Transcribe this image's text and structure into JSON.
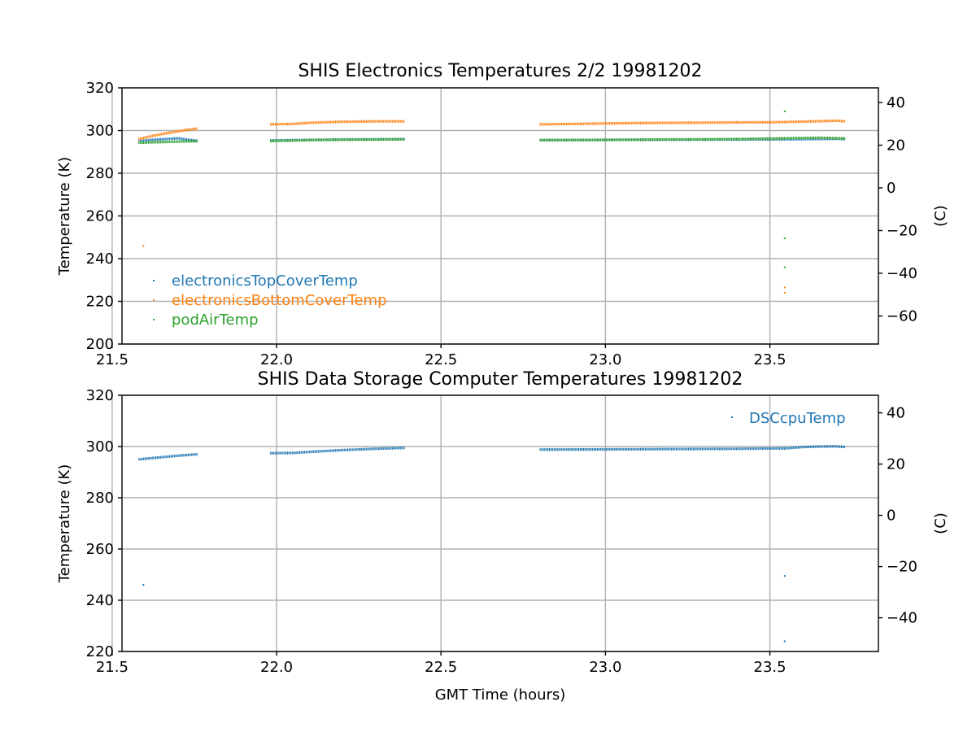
{
  "colors": {
    "blue": "#1f77b4",
    "orange": "#ff7f0e",
    "green": "#2ca02c"
  },
  "chart_data": [
    {
      "type": "scatter",
      "title": "SHIS Electronics Temperatures 2/2 19981202",
      "xlabel": "",
      "ylabel": "Temperature (K)",
      "y2label": "(C)",
      "xlim": [
        21.53,
        23.83
      ],
      "ylim": [
        200,
        320
      ],
      "xticks": [
        "21.5",
        "22.0",
        "22.5",
        "23.0",
        "23.5"
      ],
      "yticks": [
        "200",
        "220",
        "240",
        "260",
        "280",
        "300",
        "320"
      ],
      "y2ticks": [
        "−60",
        "−40",
        "−20",
        "0",
        "20",
        "40"
      ],
      "grid": true,
      "legend_position": "lower-left",
      "series": [
        {
          "name": "electronicsTopCoverTemp",
          "color": "#1f77b4",
          "segments": [
            {
              "x": [
                21.58,
                21.62,
                21.66,
                21.7,
                21.74,
                21.76
              ],
              "y": [
                295.0,
                295.6,
                296.0,
                296.4,
                295.5,
                295.2
              ]
            },
            {
              "x": [
                21.98,
                22.1,
                22.2,
                22.3,
                22.39
              ],
              "y": [
                295.3,
                295.6,
                295.8,
                295.9,
                296.0
              ]
            },
            {
              "x": [
                22.8,
                23.0,
                23.2,
                23.4,
                23.55,
                23.7,
                23.73
              ],
              "y": [
                295.5,
                295.6,
                295.7,
                295.8,
                295.9,
                296.1,
                296.0
              ]
            }
          ],
          "points": []
        },
        {
          "name": "electronicsBottomCoverTemp",
          "color": "#ff7f0e",
          "segments": [
            {
              "x": [
                21.58,
                21.62,
                21.66,
                21.7,
                21.74,
                21.76
              ],
              "y": [
                296.0,
                297.4,
                298.6,
                299.6,
                300.6,
                300.9
              ]
            },
            {
              "x": [
                21.98,
                22.05,
                22.1,
                22.15,
                22.2,
                22.3,
                22.39
              ],
              "y": [
                302.9,
                303.1,
                303.6,
                303.9,
                304.1,
                304.3,
                304.3
              ]
            },
            {
              "x": [
                22.8,
                22.9,
                23.0,
                23.1,
                23.2,
                23.3,
                23.4,
                23.5,
                23.55,
                23.6,
                23.65,
                23.7,
                23.73
              ],
              "y": [
                302.9,
                303.1,
                303.3,
                303.5,
                303.6,
                303.7,
                303.8,
                303.9,
                304.0,
                304.2,
                304.4,
                304.6,
                304.3
              ]
            }
          ],
          "points": [
            {
              "x": 21.595,
              "y": 246.0
            },
            {
              "x": 23.545,
              "y": 226.5
            },
            {
              "x": 23.545,
              "y": 224.0
            }
          ]
        },
        {
          "name": "podAirTemp",
          "color": "#2ca02c",
          "segments": [
            {
              "x": [
                21.58,
                21.65,
                21.7,
                21.76
              ],
              "y": [
                294.3,
                294.6,
                294.8,
                295.0
              ]
            },
            {
              "x": [
                21.98,
                22.1,
                22.2,
                22.3,
                22.39
              ],
              "y": [
                295.1,
                295.5,
                295.7,
                295.8,
                295.9
              ]
            },
            {
              "x": [
                22.8,
                23.0,
                23.2,
                23.4,
                23.55,
                23.65,
                23.73
              ],
              "y": [
                295.5,
                295.6,
                295.8,
                296.0,
                296.4,
                296.6,
                296.3
              ]
            }
          ],
          "points": [
            {
              "x": 23.545,
              "y": 309.0
            },
            {
              "x": 23.545,
              "y": 249.5
            },
            {
              "x": 23.545,
              "y": 236.0
            }
          ]
        }
      ]
    },
    {
      "type": "scatter",
      "title": "SHIS Data Storage Computer Temperatures 19981202",
      "xlabel": "GMT Time (hours)",
      "ylabel": "Temperature (K)",
      "y2label": "(C)",
      "xlim": [
        21.53,
        23.83
      ],
      "ylim": [
        220,
        320
      ],
      "xticks": [
        "21.5",
        "22.0",
        "22.5",
        "23.0",
        "23.5"
      ],
      "yticks": [
        "220",
        "240",
        "260",
        "280",
        "300",
        "320"
      ],
      "y2ticks": [
        "−40",
        "−20",
        "0",
        "20",
        "40"
      ],
      "grid": true,
      "legend_position": "upper-right",
      "series": [
        {
          "name": "DSCcpuTemp",
          "color": "#1f77b4",
          "segments": [
            {
              "x": [
                21.58,
                21.65,
                21.7,
                21.76
              ],
              "y": [
                295.0,
                295.8,
                296.4,
                297.0
              ]
            },
            {
              "x": [
                21.98,
                22.05,
                22.1,
                22.2,
                22.3,
                22.39
              ],
              "y": [
                297.4,
                297.5,
                297.9,
                298.6,
                299.1,
                299.5
              ]
            },
            {
              "x": [
                22.8,
                23.0,
                23.2,
                23.4,
                23.55,
                23.6,
                23.65,
                23.7,
                23.73
              ],
              "y": [
                298.8,
                298.9,
                299.0,
                299.1,
                299.3,
                299.8,
                300.0,
                300.1,
                299.8
              ]
            }
          ],
          "points": [
            {
              "x": 21.595,
              "y": 246.0
            },
            {
              "x": 23.545,
              "y": 249.5
            },
            {
              "x": 23.545,
              "y": 224.0
            }
          ]
        }
      ]
    }
  ]
}
